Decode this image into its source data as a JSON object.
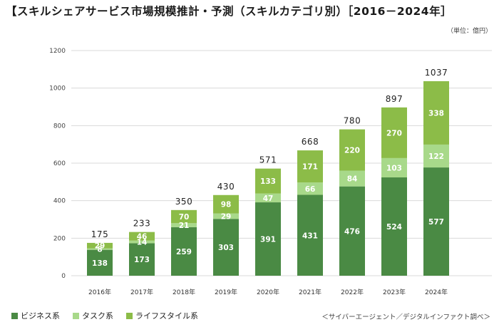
{
  "title": "【スキルシェアサービス市場規模推計・予測（スキルカテゴリ別）［2016－2024年］",
  "unit_label": "（単位：億円）",
  "source": "＜サイバーエージェント／デジタルインファクト調べ＞",
  "colors": {
    "business": "#4a8a44",
    "task": "#a8d98a",
    "lifestyle": "#8cbc48",
    "grid": "#d9d9d9"
  },
  "chart_data": {
    "type": "bar",
    "stacked": true,
    "categories": [
      "2016年",
      "2017年",
      "2018年",
      "2019年",
      "2020年",
      "2021年",
      "2022年",
      "2023年",
      "2024年"
    ],
    "series": [
      {
        "name": "ビジネス系",
        "values": [
          138,
          173,
          259,
          303,
          391,
          431,
          476,
          524,
          577
        ]
      },
      {
        "name": "タスク系",
        "values": [
          8,
          14,
          21,
          29,
          47,
          66,
          84,
          103,
          122
        ]
      },
      {
        "name": "ライフスタイル系",
        "values": [
          29,
          46,
          70,
          98,
          133,
          171,
          220,
          270,
          338
        ]
      }
    ],
    "totals": [
      175,
      233,
      350,
      430,
      571,
      668,
      780,
      897,
      1037
    ],
    "y_ticks": [
      "0",
      "200",
      "400",
      "600",
      "800",
      "1000",
      "1200"
    ],
    "ylim": [
      0,
      1200
    ],
    "grid": true,
    "legend_position": "bottom-left"
  }
}
